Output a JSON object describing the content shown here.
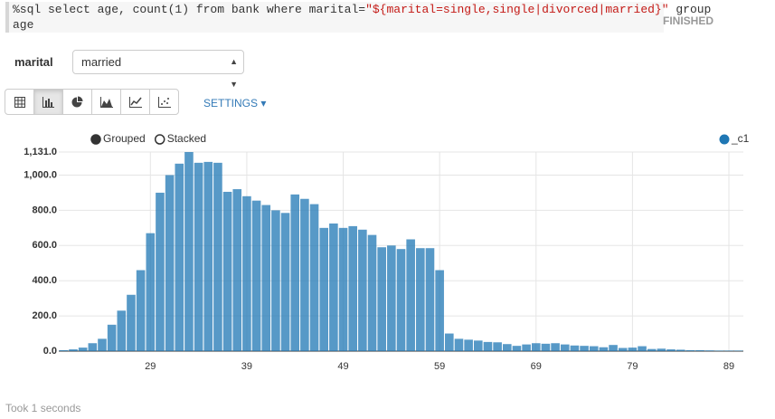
{
  "code": {
    "prefix": "%sql select age, count(1) from bank where marital=",
    "string": "\"${marital=single,single|divorced|married}\"",
    "suffix": " group",
    "line2": "age"
  },
  "status": "FINISHED",
  "form": {
    "label": "marital",
    "selected": "married"
  },
  "settings": "SETTINGS",
  "footer": "Took 1 seconds",
  "chart_data": {
    "type": "bar",
    "options": [
      "Grouped",
      "Stacked"
    ],
    "selected_option": 0,
    "categories": [
      null,
      null,
      null,
      null,
      null,
      null,
      null,
      null,
      null,
      "29",
      null,
      null,
      null,
      null,
      null,
      null,
      null,
      null,
      null,
      "39",
      null,
      null,
      null,
      null,
      null,
      null,
      null,
      null,
      null,
      "49",
      null,
      null,
      null,
      null,
      null,
      null,
      null,
      null,
      null,
      "59",
      null,
      null,
      null,
      null,
      null,
      null,
      null,
      null,
      null,
      "69",
      null,
      null,
      null,
      null,
      null,
      null,
      null,
      null,
      null,
      "79",
      null,
      null,
      null,
      null,
      null,
      null,
      null,
      null,
      null,
      "89",
      null
    ],
    "series": [
      {
        "name": "_c1",
        "color": "#1f77b4",
        "values": [
          5,
          10,
          20,
          45,
          70,
          150,
          230,
          320,
          460,
          670,
          900,
          1000,
          1065,
          1131,
          1070,
          1075,
          1070,
          905,
          920,
          880,
          855,
          830,
          800,
          785,
          890,
          865,
          835,
          700,
          725,
          700,
          710,
          690,
          660,
          590,
          600,
          580,
          635,
          585,
          585,
          460,
          100,
          70,
          65,
          60,
          52,
          50,
          40,
          30,
          38,
          45,
          42,
          45,
          38,
          32,
          30,
          28,
          22,
          35,
          18,
          20,
          28,
          12,
          14,
          10,
          8,
          5,
          5,
          4,
          3,
          3,
          3
        ]
      }
    ],
    "ylim": [
      0,
      1131
    ],
    "yticks": [
      {
        "value": 0,
        "label": "0.0"
      },
      {
        "value": 200,
        "label": "200.0"
      },
      {
        "value": 400,
        "label": "400.0"
      },
      {
        "value": 600,
        "label": "600.0"
      },
      {
        "value": 800,
        "label": "800.0"
      },
      {
        "value": 1000,
        "label": "1,000.0"
      },
      {
        "value": 1131,
        "label": "1,131.0"
      }
    ],
    "grid": true
  }
}
